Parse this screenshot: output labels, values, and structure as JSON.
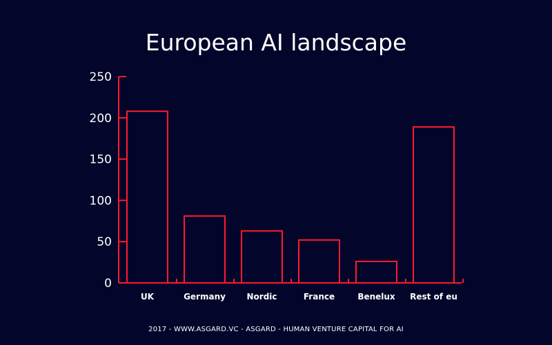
{
  "chart_data": {
    "type": "bar",
    "title": "European AI landscape",
    "categories": [
      "UK",
      "Germany",
      "Nordic",
      "France",
      "Benelux",
      "Rest of eu"
    ],
    "values": [
      208,
      81,
      63,
      52,
      26,
      189
    ],
    "ylim": [
      0,
      250
    ],
    "yticks": [
      0,
      50,
      100,
      150,
      200,
      250
    ],
    "xlabel": "",
    "ylabel": "",
    "grid": false,
    "bar_color": "#ff1a2e",
    "axis_color": "#ff1a2e"
  },
  "footer": "2017 - WWW.ASGARD.VC - ASGARD - HUMAN VENTURE CAPITAL FOR AI",
  "colors": {
    "background": "#03062a",
    "text": "#ffffff"
  }
}
